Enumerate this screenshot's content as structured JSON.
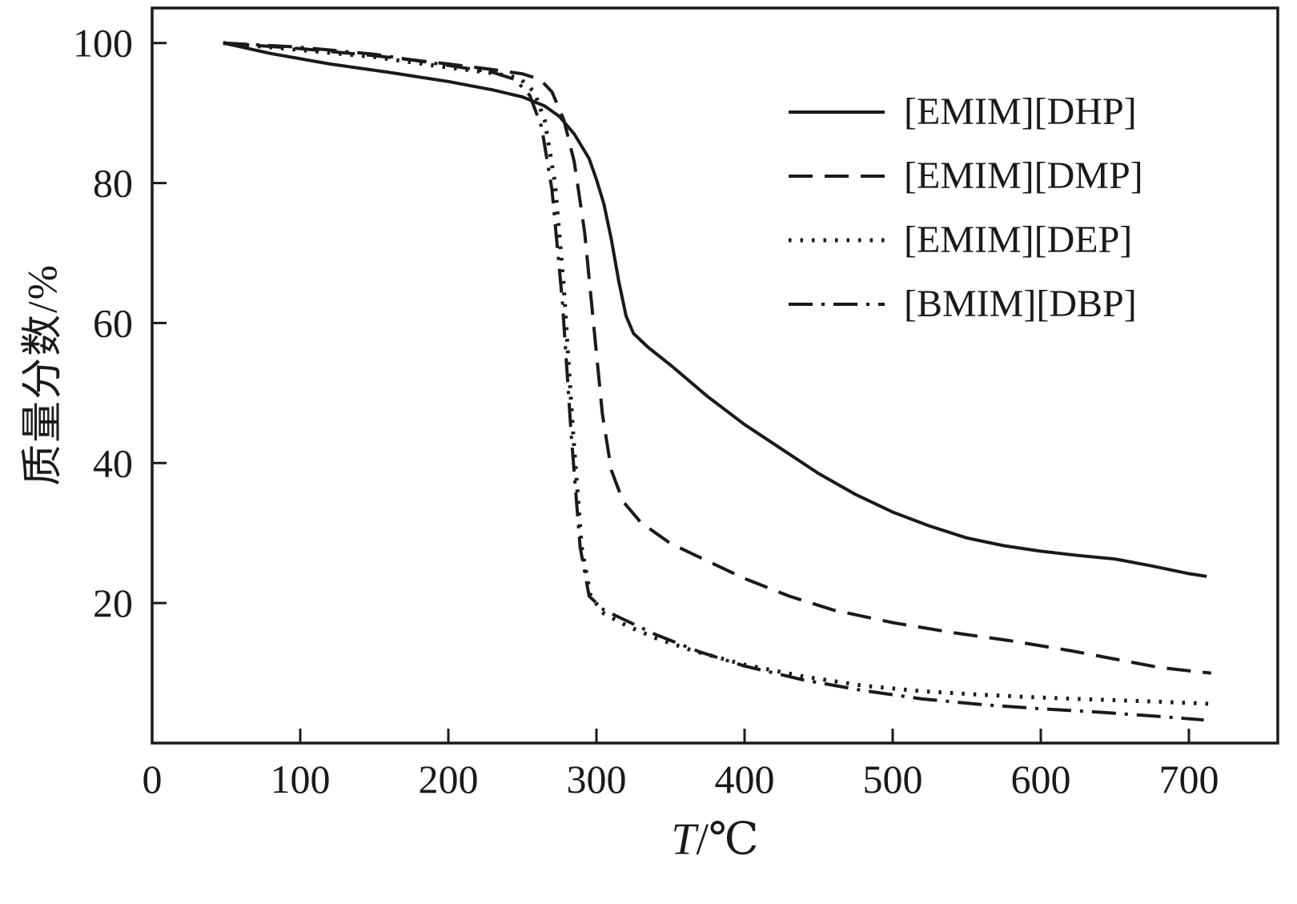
{
  "figure": {
    "background": "#ffffff",
    "line_color": "#1a1a1a"
  },
  "chart_data": {
    "type": "line",
    "title": "",
    "xlabel": "T/℃",
    "xlabel_var": "T",
    "xlabel_unit": "/℃",
    "ylabel": "质量分数/%",
    "xlim": [
      0,
      760
    ],
    "ylim": [
      0,
      105
    ],
    "x_ticks": [
      0,
      100,
      200,
      300,
      400,
      500,
      600,
      700
    ],
    "y_ticks": [
      20,
      40,
      60,
      80,
      100
    ],
    "grid": false,
    "legend_position": "upper right",
    "series": [
      {
        "name": "[EMIM][DHP]",
        "line_style": "solid",
        "points": [
          [
            48,
            100
          ],
          [
            80,
            98.5
          ],
          [
            120,
            97
          ],
          [
            160,
            95.8
          ],
          [
            200,
            94.5
          ],
          [
            230,
            93.3
          ],
          [
            250,
            92.3
          ],
          [
            265,
            91
          ],
          [
            275,
            89.5
          ],
          [
            285,
            87
          ],
          [
            295,
            83.5
          ],
          [
            300,
            80.5
          ],
          [
            305,
            77
          ],
          [
            310,
            72
          ],
          [
            315,
            66
          ],
          [
            320,
            61
          ],
          [
            325,
            58.5
          ],
          [
            335,
            56.5
          ],
          [
            350,
            54
          ],
          [
            375,
            49.5
          ],
          [
            400,
            45.5
          ],
          [
            425,
            42
          ],
          [
            450,
            38.5
          ],
          [
            475,
            35.5
          ],
          [
            500,
            33
          ],
          [
            525,
            31
          ],
          [
            550,
            29.3
          ],
          [
            575,
            28.2
          ],
          [
            600,
            27.4
          ],
          [
            625,
            26.8
          ],
          [
            650,
            26.3
          ],
          [
            675,
            25.3
          ],
          [
            700,
            24.2
          ],
          [
            712,
            23.8
          ]
        ]
      },
      {
        "name": "[EMIM][DMP]",
        "line_style": "dashed",
        "points": [
          [
            48,
            100
          ],
          [
            100,
            99.2
          ],
          [
            150,
            98.2
          ],
          [
            200,
            97
          ],
          [
            230,
            96.2
          ],
          [
            250,
            95.6
          ],
          [
            262,
            94.8
          ],
          [
            270,
            93
          ],
          [
            278,
            89
          ],
          [
            285,
            83
          ],
          [
            292,
            73
          ],
          [
            298,
            60
          ],
          [
            304,
            47
          ],
          [
            310,
            39
          ],
          [
            318,
            34.5
          ],
          [
            330,
            31.5
          ],
          [
            350,
            28.5
          ],
          [
            375,
            26
          ],
          [
            400,
            23.5
          ],
          [
            430,
            21
          ],
          [
            460,
            19
          ],
          [
            500,
            17.2
          ],
          [
            540,
            15.8
          ],
          [
            580,
            14.6
          ],
          [
            620,
            13.2
          ],
          [
            650,
            12
          ],
          [
            680,
            10.8
          ],
          [
            705,
            10.2
          ],
          [
            715,
            10
          ]
        ]
      },
      {
        "name": "[EMIM][DEP]",
        "line_style": "dotted",
        "points": [
          [
            48,
            100
          ],
          [
            100,
            99
          ],
          [
            150,
            98
          ],
          [
            200,
            96.5
          ],
          [
            230,
            95.7
          ],
          [
            248,
            95
          ],
          [
            258,
            93
          ],
          [
            265,
            89
          ],
          [
            272,
            80
          ],
          [
            278,
            65
          ],
          [
            284,
            45
          ],
          [
            290,
            28
          ],
          [
            296,
            21
          ],
          [
            305,
            18.5
          ],
          [
            320,
            16.8
          ],
          [
            340,
            15
          ],
          [
            365,
            13.2
          ],
          [
            400,
            11.2
          ],
          [
            440,
            9.5
          ],
          [
            480,
            8.2
          ],
          [
            520,
            7.4
          ],
          [
            560,
            6.9
          ],
          [
            600,
            6.5
          ],
          [
            640,
            6.2
          ],
          [
            680,
            5.9
          ],
          [
            715,
            5.6
          ]
        ]
      },
      {
        "name": "[BMIM][DBP]",
        "line_style": "dashdot",
        "points": [
          [
            48,
            100
          ],
          [
            100,
            99.4
          ],
          [
            150,
            98.4
          ],
          [
            200,
            96.8
          ],
          [
            230,
            95.8
          ],
          [
            245,
            94.8
          ],
          [
            255,
            92.5
          ],
          [
            263,
            88
          ],
          [
            270,
            79
          ],
          [
            277,
            63
          ],
          [
            283,
            44
          ],
          [
            289,
            28
          ],
          [
            295,
            21
          ],
          [
            305,
            19
          ],
          [
            320,
            17.5
          ],
          [
            340,
            15.5
          ],
          [
            370,
            13
          ],
          [
            400,
            11
          ],
          [
            440,
            9
          ],
          [
            480,
            7.5
          ],
          [
            520,
            6.3
          ],
          [
            560,
            5.5
          ],
          [
            600,
            4.9
          ],
          [
            640,
            4.4
          ],
          [
            680,
            3.8
          ],
          [
            710,
            3.3
          ]
        ]
      }
    ]
  }
}
